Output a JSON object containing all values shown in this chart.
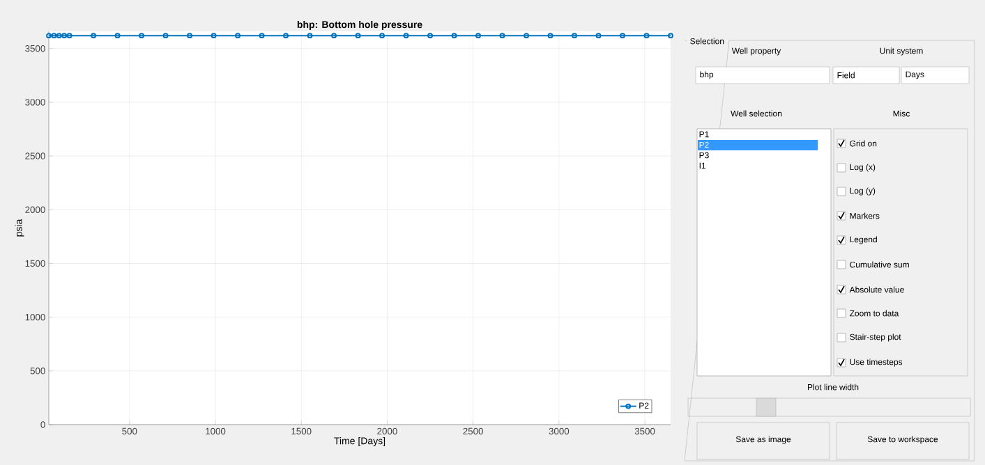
{
  "chart_data": {
    "type": "line",
    "title": "bhp: Bottom hole pressure",
    "xlabel": "Time [Days]",
    "ylabel": "psia",
    "x": [
      30,
      60,
      90,
      120,
      150,
      290,
      430,
      570,
      710,
      850,
      990,
      1130,
      1270,
      1410,
      1550,
      1690,
      1830,
      1970,
      2110,
      2250,
      2390,
      2530,
      2670,
      2810,
      2950,
      3090,
      3230,
      3370,
      3510,
      3650
    ],
    "series": [
      {
        "name": "P2",
        "color": "#0072bd",
        "values": [
          3620,
          3620,
          3620,
          3620,
          3620,
          3620,
          3620,
          3620,
          3620,
          3620,
          3620,
          3620,
          3620,
          3620,
          3620,
          3620,
          3620,
          3620,
          3620,
          3620,
          3620,
          3620,
          3620,
          3620,
          3620,
          3620,
          3620,
          3620,
          3620,
          3620
        ]
      }
    ],
    "xlim": [
      30,
      3650
    ],
    "ylim": [
      0,
      3660
    ],
    "xticks": [
      500,
      1000,
      1500,
      2000,
      2500,
      3000,
      3500
    ],
    "yticks": [
      0,
      500,
      1000,
      1500,
      2000,
      2500,
      3000,
      3500
    ],
    "grid": true,
    "legend": "bottom right",
    "marker": "circle",
    "line_style": "solid",
    "annotations": [
      "Selection",
      "Well property",
      "Unit system",
      "bhp",
      "Field",
      "Days",
      "Well selection",
      "Misc",
      "P1",
      "P2",
      "P3",
      "I1",
      "Grid on",
      "Log (x)",
      "Log (y)",
      "Markers",
      "Legend",
      "Cumulative sum",
      "Absolute value",
      "Zoom to data",
      "Stair-step plot",
      "Use timesteps",
      "Plot line width",
      "Save as image",
      "Save to workspace"
    ]
  }
}
